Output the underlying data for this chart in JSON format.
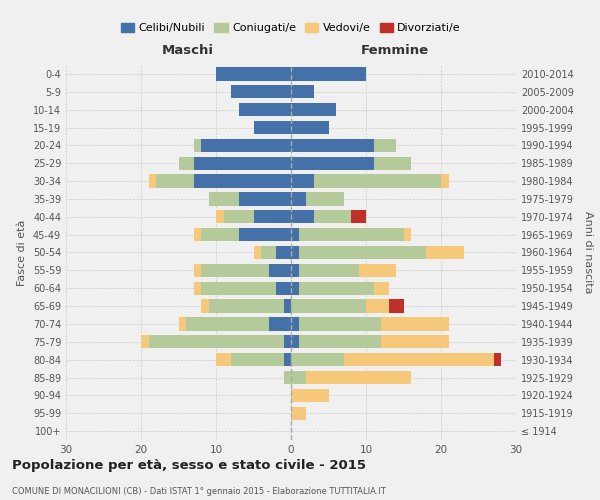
{
  "age_groups": [
    "100+",
    "95-99",
    "90-94",
    "85-89",
    "80-84",
    "75-79",
    "70-74",
    "65-69",
    "60-64",
    "55-59",
    "50-54",
    "45-49",
    "40-44",
    "35-39",
    "30-34",
    "25-29",
    "20-24",
    "15-19",
    "10-14",
    "5-9",
    "0-4"
  ],
  "birth_years": [
    "≤ 1914",
    "1915-1919",
    "1920-1924",
    "1925-1929",
    "1930-1934",
    "1935-1939",
    "1940-1944",
    "1945-1949",
    "1950-1954",
    "1955-1959",
    "1960-1964",
    "1965-1969",
    "1970-1974",
    "1975-1979",
    "1980-1984",
    "1985-1989",
    "1990-1994",
    "1995-1999",
    "2000-2004",
    "2005-2009",
    "2010-2014"
  ],
  "male": {
    "celibi": [
      0,
      0,
      0,
      0,
      1,
      1,
      3,
      1,
      2,
      3,
      2,
      7,
      5,
      7,
      13,
      13,
      12,
      5,
      7,
      8,
      10
    ],
    "coniugati": [
      0,
      0,
      0,
      1,
      7,
      18,
      11,
      10,
      10,
      9,
      2,
      5,
      4,
      4,
      5,
      2,
      1,
      0,
      0,
      0,
      0
    ],
    "vedovi": [
      0,
      0,
      0,
      0,
      2,
      1,
      1,
      1,
      1,
      1,
      1,
      1,
      1,
      0,
      1,
      0,
      0,
      0,
      0,
      0,
      0
    ],
    "divorziati": [
      0,
      0,
      0,
      0,
      0,
      0,
      0,
      0,
      0,
      0,
      0,
      0,
      0,
      0,
      0,
      0,
      0,
      0,
      0,
      0,
      0
    ]
  },
  "female": {
    "nubili": [
      0,
      0,
      0,
      0,
      0,
      1,
      1,
      0,
      1,
      1,
      1,
      1,
      3,
      2,
      3,
      11,
      11,
      5,
      6,
      3,
      10
    ],
    "coniugate": [
      0,
      0,
      0,
      2,
      7,
      11,
      11,
      10,
      10,
      8,
      17,
      14,
      5,
      5,
      17,
      5,
      3,
      0,
      0,
      0,
      0
    ],
    "vedove": [
      0,
      2,
      5,
      14,
      20,
      9,
      9,
      3,
      2,
      5,
      5,
      1,
      0,
      0,
      1,
      0,
      0,
      0,
      0,
      0,
      0
    ],
    "divorziate": [
      0,
      0,
      0,
      0,
      1,
      0,
      0,
      2,
      0,
      0,
      0,
      0,
      2,
      0,
      0,
      0,
      0,
      0,
      0,
      0,
      0
    ]
  },
  "colors": {
    "celibi": "#4472a8",
    "coniugati": "#b5ca9b",
    "vedovi": "#f5c87a",
    "divorziati": "#c0302a"
  },
  "xlim": [
    -30,
    30
  ],
  "xlabel_left": "Maschi",
  "xlabel_right": "Femmine",
  "ylabel_left": "Fasce di età",
  "ylabel_right": "Anni di nascita",
  "title": "Popolazione per età, sesso e stato civile - 2015",
  "subtitle": "COMUNE DI MONACILIONI (CB) - Dati ISTAT 1° gennaio 2015 - Elaborazione TUTTITALIA.IT",
  "legend_labels": [
    "Celibi/Nubili",
    "Coniugati/e",
    "Vedovi/e",
    "Divorziati/e"
  ],
  "background_color": "#f0f0f0",
  "bar_height": 0.75,
  "grid_color": "#cccccc"
}
